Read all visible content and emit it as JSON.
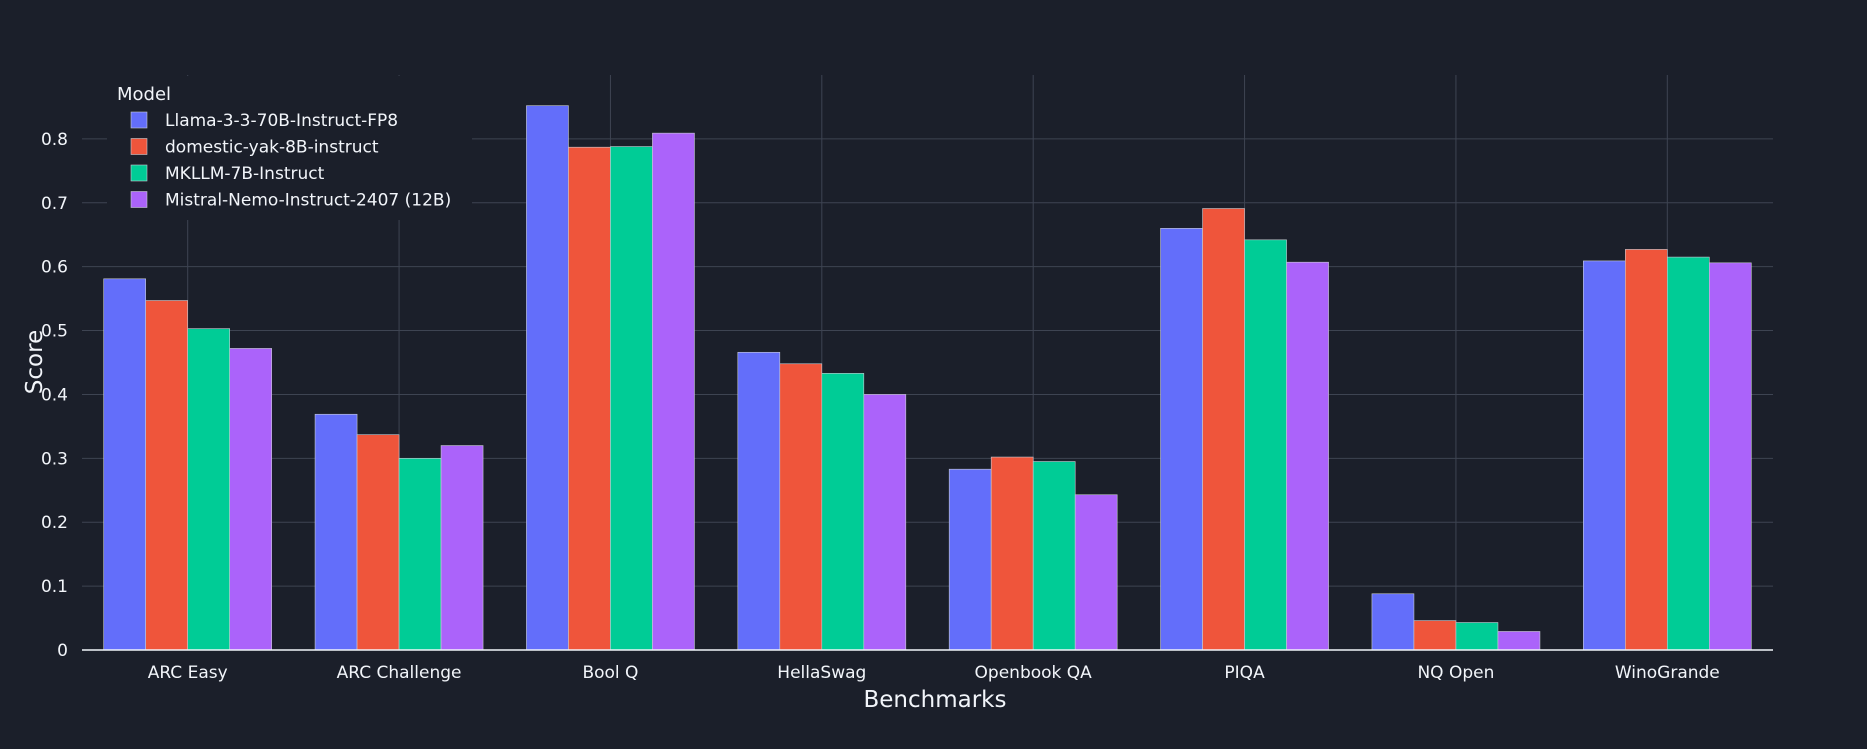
{
  "chart_data": {
    "type": "bar",
    "xlabel": "Benchmarks",
    "ylabel": "Score",
    "ylim": [
      0,
      0.9
    ],
    "yticks": [
      0,
      0.1,
      0.2,
      0.3,
      0.4,
      0.5,
      0.6,
      0.7,
      0.8
    ],
    "ytick_labels": [
      "0",
      "0.1",
      "0.2",
      "0.3",
      "0.4",
      "0.5",
      "0.6",
      "0.7",
      "0.8"
    ],
    "grid": true,
    "legend": {
      "title": "Model",
      "placement": "top-left"
    },
    "categories": [
      "ARC Easy",
      "ARC Challenge",
      "Bool Q",
      "HellaSwag",
      "Openbook QA",
      "PIQA",
      "NQ Open",
      "WinoGrande"
    ],
    "series": [
      {
        "name": "Llama-3-3-70B-Instruct-FP8",
        "color": "#636efa",
        "values": [
          0.581,
          0.369,
          0.852,
          0.466,
          0.283,
          0.66,
          0.088,
          0.609
        ]
      },
      {
        "name": "domestic-yak-8B-instruct",
        "color": "#ef553b",
        "values": [
          0.547,
          0.337,
          0.787,
          0.448,
          0.302,
          0.691,
          0.046,
          0.627
        ]
      },
      {
        "name": "MKLLM-7B-Instruct",
        "color": "#00cc96",
        "values": [
          0.503,
          0.3,
          0.788,
          0.433,
          0.295,
          0.642,
          0.043,
          0.615
        ]
      },
      {
        "name": "Mistral-Nemo-Instruct-2407 (12B)",
        "color": "#ab63fa",
        "values": [
          0.472,
          0.32,
          0.809,
          0.4,
          0.243,
          0.607,
          0.029,
          0.606
        ]
      }
    ]
  }
}
